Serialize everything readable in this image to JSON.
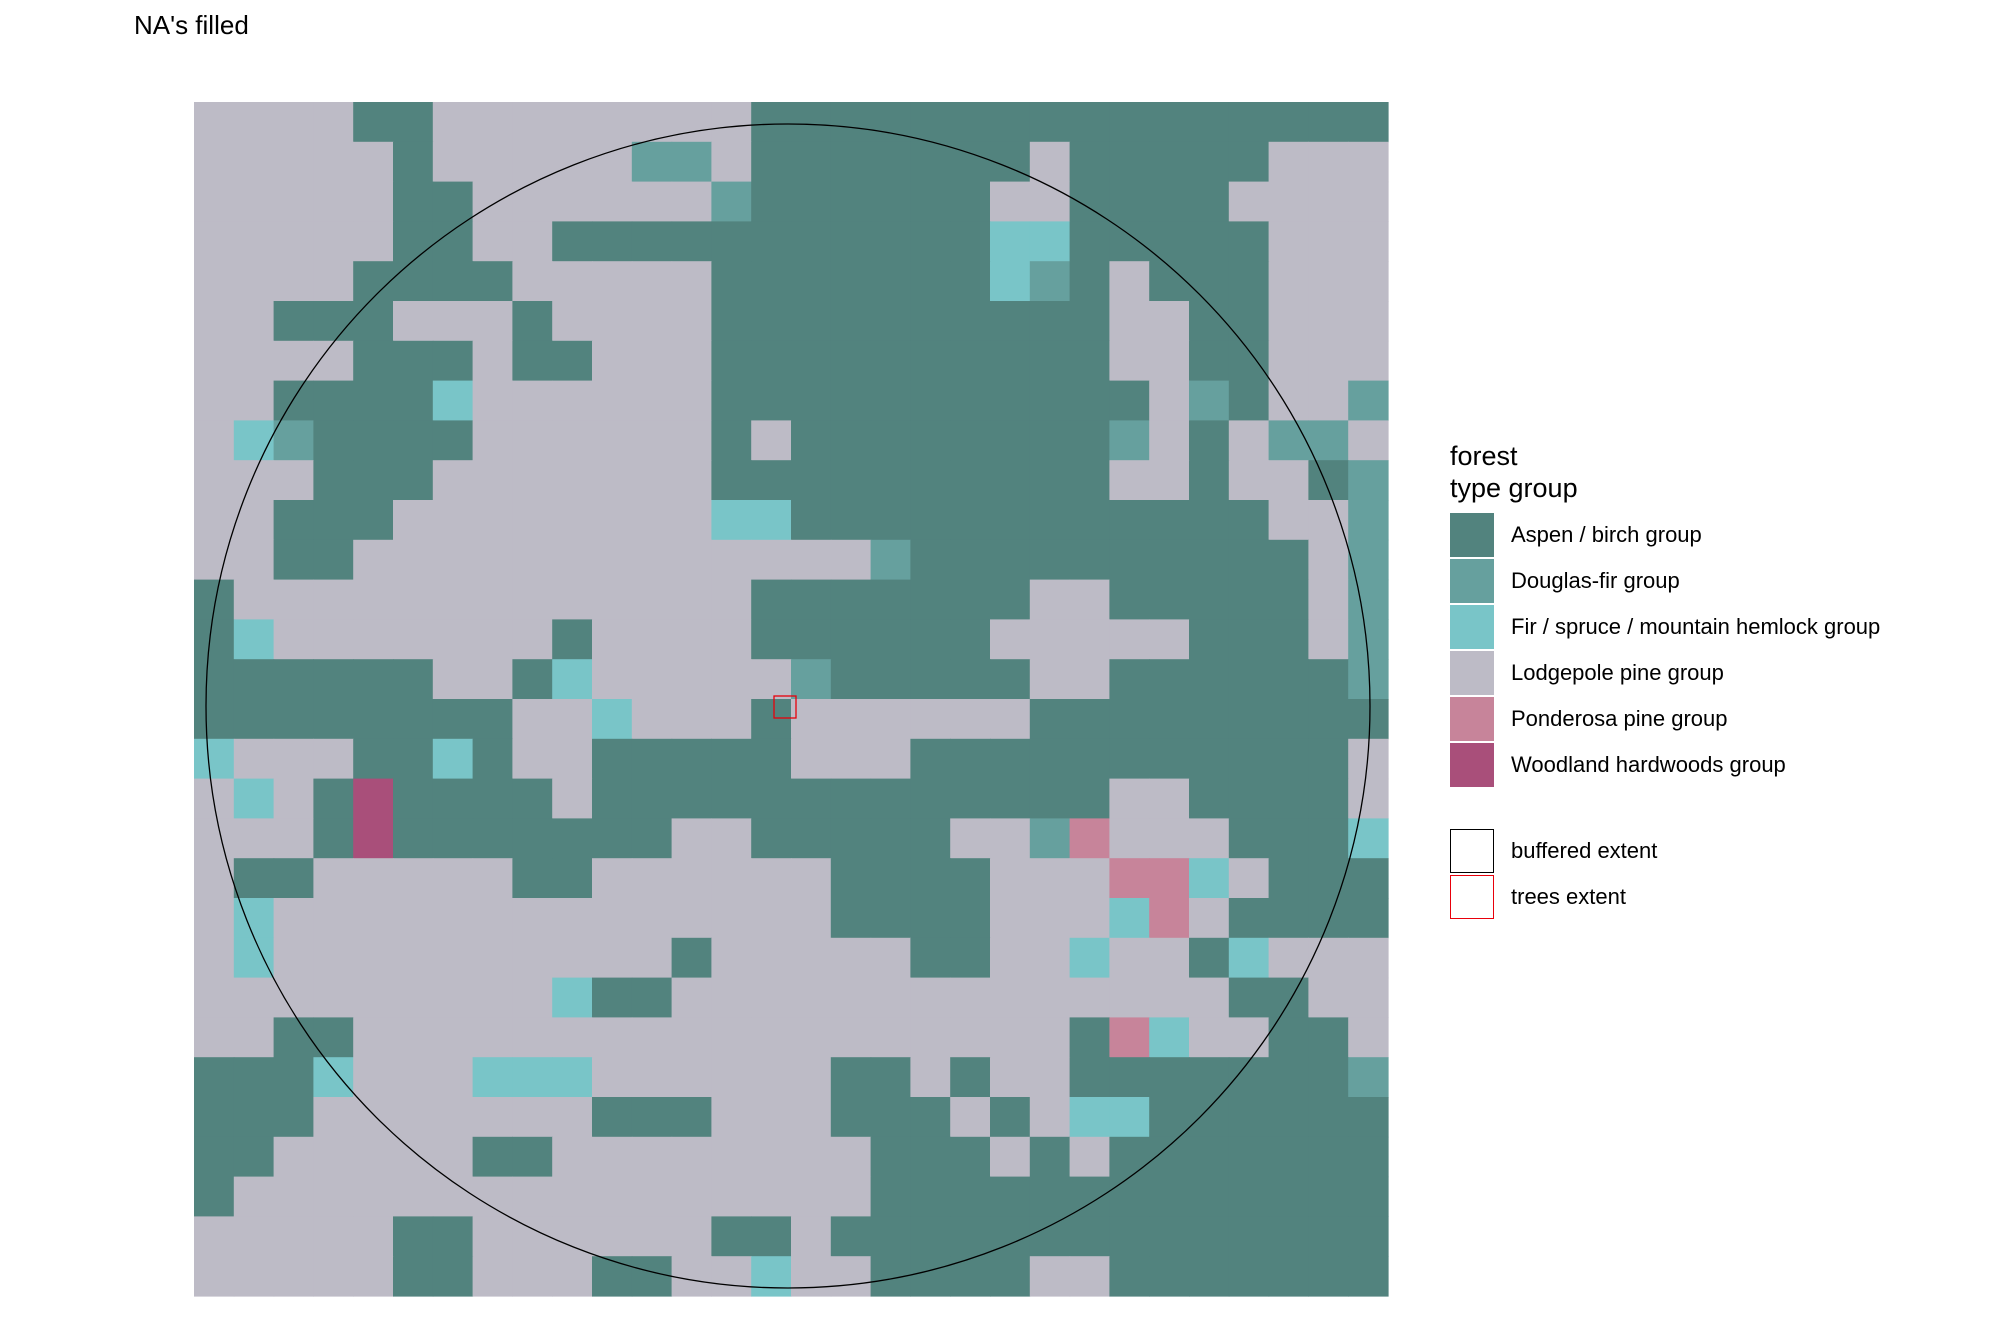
{
  "title": "NA's filled",
  "legend": {
    "title_line1": "forest",
    "title_line2": "type group",
    "classes": [
      {
        "code": "A",
        "label": "Aspen / birch group",
        "color": "#52837E"
      },
      {
        "code": "D",
        "label": "Douglas-fir group",
        "color": "#66A09E"
      },
      {
        "code": "F",
        "label": "Fir / spruce / mountain hemlock group",
        "color": "#79C5C8"
      },
      {
        "code": "L",
        "label": "Lodgepole pine group",
        "color": "#BDBBC6"
      },
      {
        "code": "P",
        "label": "Ponderosa pine group",
        "color": "#C7849A"
      },
      {
        "code": "W",
        "label": "Woodland hardwoods group",
        "color": "#A94F7A"
      }
    ],
    "outlines": [
      {
        "label": "buffered extent",
        "color": "#000000"
      },
      {
        "label": "trees extent",
        "color": "#E8000B"
      }
    ]
  },
  "grid": [
    "LLLLAALLLLLLLLAAAAAAAAAAAAAAAAL",
    "LLLLLALLLLLDDLAAAAAAALAAAAALLL",
    "LLLLLAALLLLLLDAAAAAALLAAAALLLL",
    "LLLLLAALLAAAAAAAAAAAFFAAAAALLL",
    "LLLLAAAALLLLLAAAAAAAFDALAAALLL",
    "LLAAALLLALLLLAAAAAAAAAALLAALLL",
    "LLLLAAALAALLLAAAAAAAAAALLAALLL",
    "LLAAAAFLLLLLLAAAAAAAAAAALDALLD",
    "LFDAAAALLLLLLALAAAAAAAADLALDDL",
    "LLLAAALLLLLLLAAAAAAAAAALLALLAD",
    "LLAAALLLLLLLLFFAAAAAAAAAAAALLDL",
    "LLAALLLLLLLLLLLLLDAAAAAAAAAALDL",
    "ALLLLLLLLLLLLLAAAAAAALLAAAAALDL",
    "AFLLLLLLLALLLLAAAAAALLLLLAAALDD",
    "AAAAAALLAFLLLLLDAAAAALLAAAAAAD",
    "AAAAAAAALLFLLLALLLLLLAAAAAAAAA",
    "FLLLAAFALLAAAAALLLAAAAAAAAAAAL",
    "LFLAWAAAALAAAAAAAAAAAAALLAAAAL",
    "LLLAWAAAAAAALLAAAAALLDPLLLAAAFD",
    "LAALLLLLAALLLLLLAAAALLLPPFLAAAL",
    "LFLLLLLLLLLLLLLLAAAALLLFPLAAAAL",
    "LFLLLLLLLLLLALLLLLAALLFLLAFLLLAA",
    "LLLLLLLLLFAALLLLLLLLLLLLLLAALLL",
    "LLAALLLLLLLLLLLLLLLLLLAPFLLAALL",
    "AAAFLLLFFFLLLLLLAALALLAAAAAAADL",
    "AAALLLLLLLAAALLLAAALALFFAAAAAAL",
    "AALLLLLAALLLLLLLLAAALALAAAAAAAA",
    "ALLLLLLLLLLLLLLLLAAAAAAAAAAAAAA",
    "LLLLLAALLLLLLAALAAAAAAAAAAAAAAA",
    "LLLLLAALLLAALLFLLAAAALLAAAAAAAAA"
  ]
}
